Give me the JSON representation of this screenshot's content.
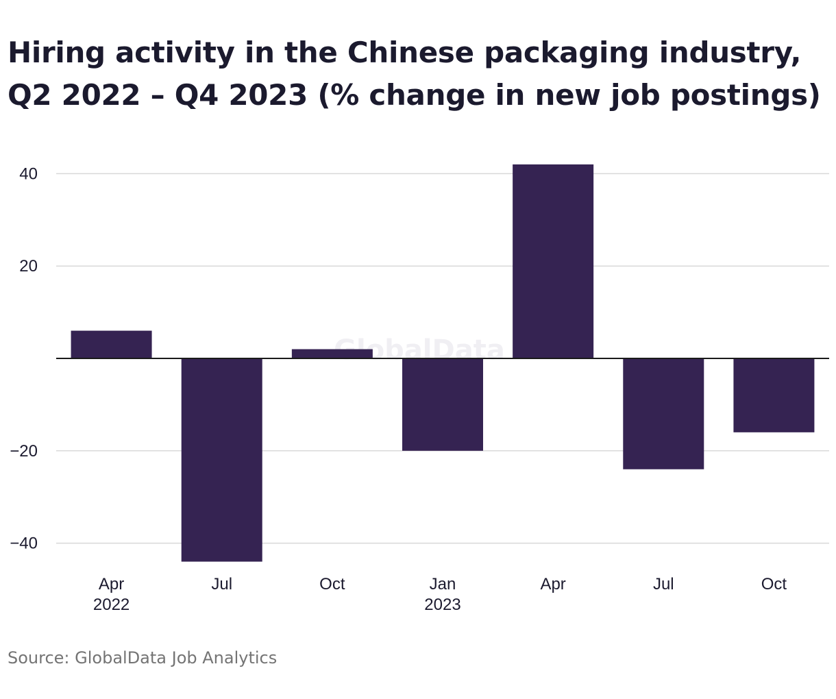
{
  "title_lines": [
    "Hiring activity in the Chinese packaging industry,",
    "Q2 2022 – Q4 2023 (% change in new job postings)"
  ],
  "source": "Source: GlobalData Job Analytics",
  "watermark": "GlobalData",
  "colors": {
    "bar": "#352352",
    "grid": "#d9d9d9",
    "zero_line": "#1a1a1a",
    "text": "#1b1a2e",
    "source": "#747474",
    "watermark": "#f0eff3"
  },
  "chart_data": {
    "type": "bar",
    "title": "Hiring activity in the Chinese packaging industry, Q2 2022 – Q4 2023 (% change in new job postings)",
    "categories": [
      "Apr 2022",
      "Jul 2022",
      "Oct 2022",
      "Jan 2023",
      "Apr 2023",
      "Jul 2023",
      "Oct 2023"
    ],
    "tick_labels": [
      [
        "Apr",
        "2022"
      ],
      [
        "Jul"
      ],
      [
        "Oct"
      ],
      [
        "Jan",
        "2023"
      ],
      [
        "Apr"
      ],
      [
        "Jul"
      ],
      [
        "Oct"
      ]
    ],
    "values": [
      6,
      -44,
      2,
      -20,
      42,
      -24,
      -16
    ],
    "ylim": [
      -45,
      45
    ],
    "yticks": [
      40,
      20,
      -20,
      -40
    ],
    "ytick_labels": [
      "40",
      "20",
      "−20",
      "−40"
    ],
    "grid": true,
    "legend": "none"
  }
}
